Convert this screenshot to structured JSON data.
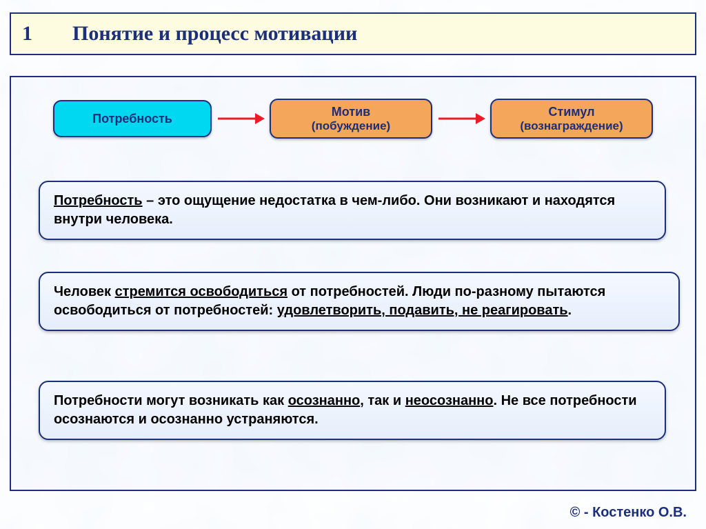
{
  "colors": {
    "border_navy": "#1b2f7a",
    "title_bg": "#fefce0",
    "node_cyan": "#00d7f0",
    "node_orange": "#f4a65b",
    "box_bg_top": "#f4f8ff",
    "box_bg_bottom": "#e6eefb",
    "arrow": "#ed1c24",
    "text_black": "#000000",
    "page_bg": "#ffffff",
    "texture_tint": "#cfe2f3"
  },
  "title": {
    "number": "1",
    "text": "Понятие и процесс мотивации",
    "fontsize": 30
  },
  "flow": {
    "nodes": [
      {
        "label": "Потребность",
        "sublabel": "",
        "bg": "#00d7f0"
      },
      {
        "label": "Мотив",
        "sublabel": "(побуждение)",
        "bg": "#f4a65b"
      },
      {
        "label": "Стимул",
        "sublabel": "(вознаграждение)",
        "bg": "#f4a65b"
      }
    ],
    "arrow_color": "#ed1c24",
    "node_fontsize": 18
  },
  "definitions": [
    {
      "segments": [
        {
          "t": "Потребность",
          "u": true
        },
        {
          "t": " – это ощущение недостатка в чем-либо. Они возникают и находятся внутри человека.",
          "u": false
        }
      ]
    },
    {
      "segments": [
        {
          "t": "Человек ",
          "u": false
        },
        {
          "t": "стремится освободиться",
          "u": true
        },
        {
          "t": " от потребностей. Люди по-разному пытаются освободиться от потребностей: ",
          "u": false
        },
        {
          "t": "удовлетворить, подавить, не реагировать",
          "u": true
        },
        {
          "t": ".",
          "u": false
        }
      ]
    },
    {
      "segments": [
        {
          "t": "Потребности могут возникать как ",
          "u": false
        },
        {
          "t": "осознанно",
          "u": true
        },
        {
          "t": ", так и ",
          "u": false
        },
        {
          "t": "неосознанно",
          "u": true
        },
        {
          "t": ". Не все потребности осознаются и осознанно устраняются.",
          "u": false
        }
      ]
    }
  ],
  "def_fontsize": 20,
  "footer": "© - Костенко О.В."
}
